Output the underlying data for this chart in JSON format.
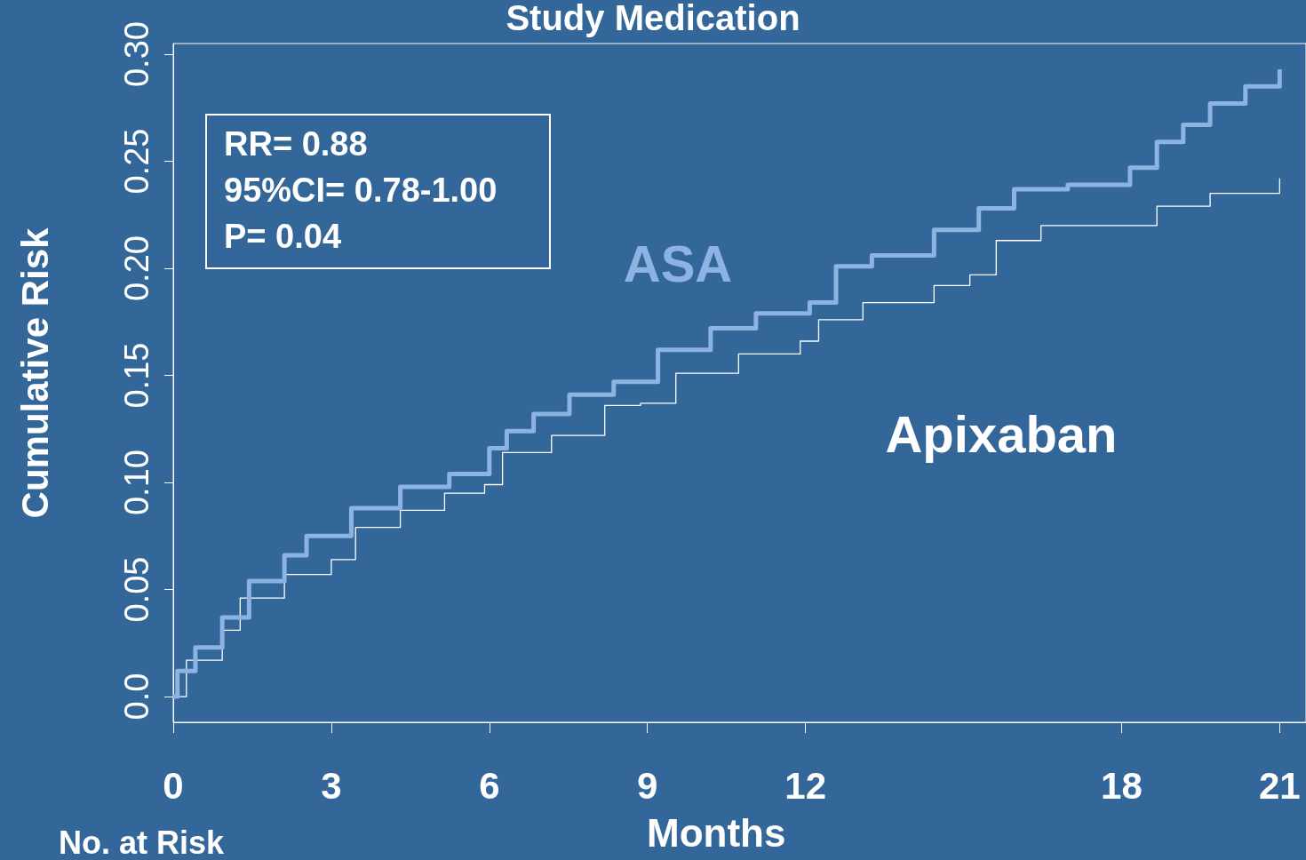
{
  "chart_data": {
    "type": "step",
    "title": "Study Medication",
    "xlabel": "Months",
    "ylabel": "Cumulative Risk",
    "xlim": [
      0,
      21.5
    ],
    "xticks": [
      0,
      3,
      6,
      9,
      12,
      18,
      21
    ],
    "ylim": [
      -0.012,
      0.305
    ],
    "yticks": [
      {
        "value": 0,
        "label": "0.0"
      },
      0.05,
      {
        "value": 0.1,
        "label": "0.10"
      },
      0.15,
      {
        "value": 0.2,
        "label": "0.20"
      },
      0.25,
      {
        "value": 0.3,
        "label": "0.30"
      }
    ],
    "grid": false,
    "legend": false,
    "marker": "none",
    "line_style": "solid",
    "annotations": [
      "RR= 0.88",
      "95%CI= 0.78-1.00",
      "P= 0.04",
      "No. at Risk"
    ],
    "series": [
      {
        "name": "ASA",
        "color": "#8db3e2",
        "x": [
          0,
          0.08,
          0.42,
          0.93,
          1.44,
          2.11,
          2.53,
          3.38,
          4.31,
          5.24,
          6.0,
          6.33,
          6.84,
          7.52,
          8.36,
          9.2,
          10.2,
          11.06,
          12.08,
          12.58,
          13.26,
          14.44,
          15.29,
          15.96,
          16.98,
          18.16,
          18.67,
          19.17,
          19.68,
          20.35,
          21.0
        ],
        "values": [
          0,
          0.012,
          0.023,
          0.037,
          0.054,
          0.066,
          0.075,
          0.088,
          0.098,
          0.104,
          0.116,
          0.124,
          0.132,
          0.141,
          0.147,
          0.162,
          0.172,
          0.179,
          0.184,
          0.201,
          0.206,
          0.218,
          0.228,
          0.237,
          0.239,
          0.247,
          0.259,
          0.267,
          0.277,
          0.285,
          0.293
        ]
      },
      {
        "name": "Apixaban",
        "color": "#ffffff",
        "x": [
          0,
          0.25,
          0.93,
          1.27,
          2.11,
          3.0,
          3.46,
          4.31,
          5.15,
          5.91,
          6.25,
          7.18,
          8.19,
          8.87,
          9.54,
          10.73,
          11.9,
          12.25,
          13.09,
          14.44,
          15.12,
          15.62,
          16.47,
          17.82,
          18.67,
          19.68,
          21.0
        ],
        "values": [
          0,
          0.017,
          0.031,
          0.046,
          0.057,
          0.064,
          0.079,
          0.087,
          0.095,
          0.099,
          0.114,
          0.122,
          0.136,
          0.137,
          0.151,
          0.16,
          0.166,
          0.176,
          0.184,
          0.192,
          0.197,
          0.213,
          0.22,
          0.22,
          0.229,
          0.235,
          0.242
        ]
      }
    ]
  }
}
